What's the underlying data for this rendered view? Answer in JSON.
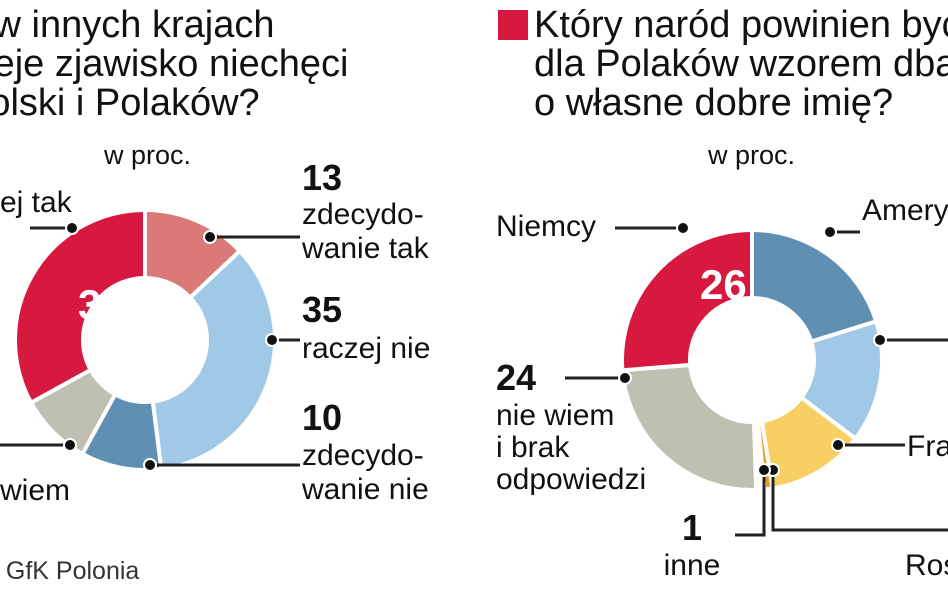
{
  "colors": {
    "red": "#d8193f",
    "pink": "#db7878",
    "light_blue": "#9fc9e7",
    "steel_blue": "#5f8fb3",
    "gray": "#bfbfb2",
    "yellow": "#f8cf62",
    "orange": "#e89a2c",
    "white": "#ffffff"
  },
  "left_chart": {
    "title_lines": [
      "y w innych krajach",
      "nieje zjawisko niechęci",
      "Polski i Polaków?"
    ],
    "unit": "w proc."
  },
  "right_chart": {
    "title_lines": [
      "Który naród powinien byċ",
      "dla Polaków wzorem dba",
      "o własne dobre imię?"
    ],
    "unit": "w proc."
  },
  "source": ": GfK Polonia",
  "chart_data": [
    {
      "type": "pie",
      "title": "y w innych krajach nieje zjawisko niechęci Polski i Polaków?",
      "subtitle": "w proc.",
      "donut": true,
      "slices": [
        {
          "label": "zdecydowanie tak",
          "value": 13,
          "color": "pink",
          "label_lines": [
            "zdecydo-",
            "wanie tak"
          ],
          "value_text": "13"
        },
        {
          "label": "raczej nie",
          "value": 35,
          "color": "light_blue",
          "label_lines": [
            "raczej nie"
          ],
          "value_text": "35"
        },
        {
          "label": "zdecydowanie nie",
          "value": 10,
          "color": "steel_blue",
          "label_lines": [
            "zdecydo-",
            "wanie nie"
          ],
          "value_text": "10"
        },
        {
          "label": "wiem",
          "value": 9,
          "color": "gray",
          "label_lines": [
            "wiem"
          ]
        },
        {
          "label": "ej tak",
          "value": 33,
          "color": "red",
          "label_lines": [
            "ej tak"
          ],
          "value_text": "33"
        }
      ]
    },
    {
      "type": "pie",
      "title": "Który naród powinien byċ dla Polaków wzorem dba o własne dobre imię?",
      "subtitle": "w proc.",
      "donut": true,
      "slices": [
        {
          "label": "Amery",
          "value": 20,
          "color": "steel_blue",
          "label_lines": [
            "Amery"
          ]
        },
        {
          "label": "",
          "value": 15,
          "color": "light_blue",
          "label_lines": []
        },
        {
          "label": "Fra",
          "value": 12,
          "color": "yellow",
          "label_lines": [
            "Fra"
          ]
        },
        {
          "label": "Ros",
          "value": 1,
          "color": "orange",
          "label_lines": [
            "Ros"
          ]
        },
        {
          "label": "inne",
          "value": 1,
          "color": "white",
          "label_lines": [
            "inne"
          ],
          "value_text": "1"
        },
        {
          "label": "nie wiem i brak odpowiedzi",
          "value": 24,
          "color": "gray",
          "label_lines": [
            "nie wiem",
            "i brak",
            "odpowiedzi"
          ],
          "value_text": "24"
        },
        {
          "label": "Niemcy",
          "value": 26,
          "color": "red",
          "label_lines": [
            "Niemcy"
          ],
          "value_text": "26"
        }
      ]
    }
  ]
}
